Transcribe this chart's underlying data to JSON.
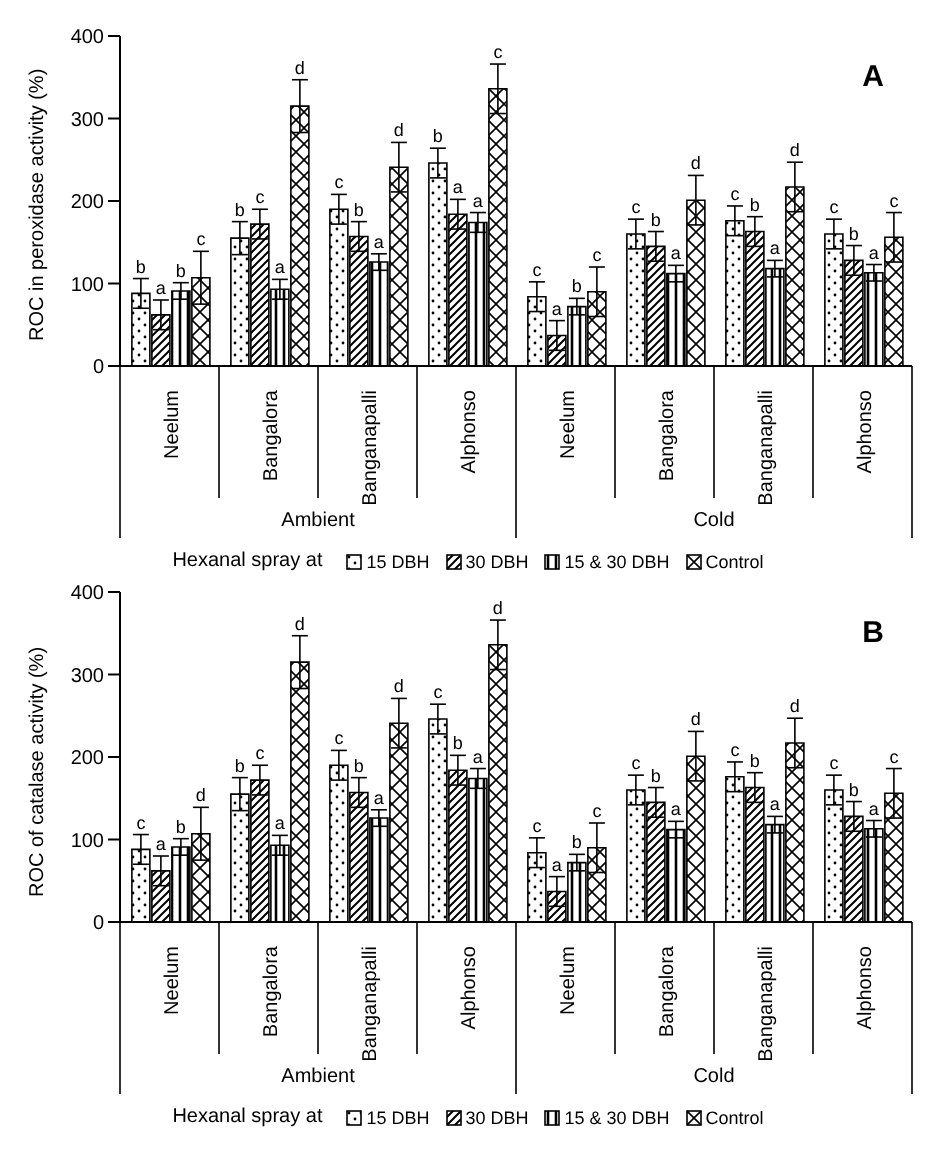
{
  "chart_data": [
    {
      "type": "bar",
      "title": "A",
      "ylabel": "ROC in peroxidase activity (%)",
      "legend_title": "Hexanal spray at",
      "legend": "bottom",
      "ylim": [
        0,
        400
      ],
      "yticks": [
        0,
        100,
        200,
        300,
        400
      ],
      "grid": false,
      "categories": [
        "Neelum",
        "Bangalora",
        "Banganapalli",
        "Alphonso",
        "Neelum",
        "Bangalora",
        "Banganapalli",
        "Alphonso"
      ],
      "annotations": [
        "Ambient",
        "Cold"
      ],
      "series": [
        {
          "name": "15 DBH",
          "color": "#000000",
          "values": [
            88,
            155,
            190,
            246,
            84,
            160,
            176,
            160
          ],
          "errors": [
            18,
            20,
            18,
            18,
            18,
            18,
            18,
            18
          ],
          "value_labels": [
            "b",
            "b",
            "c",
            "b",
            "c",
            "c",
            "c",
            "c"
          ]
        },
        {
          "name": "30 DBH",
          "color": "#000000",
          "values": [
            62,
            172,
            157,
            184,
            37,
            145,
            163,
            128
          ],
          "errors": [
            18,
            18,
            18,
            18,
            18,
            18,
            18,
            18
          ],
          "value_labels": [
            "a",
            "c",
            "b",
            "a",
            "a",
            "b",
            "b",
            "b"
          ]
        },
        {
          "name": "15 & 30 DBH",
          "color": "#000000",
          "values": [
            91,
            93,
            126,
            174,
            72,
            112,
            118,
            113
          ],
          "errors": [
            10,
            12,
            10,
            12,
            10,
            10,
            10,
            10
          ],
          "value_labels": [
            "b",
            "a",
            "a",
            "a",
            "b",
            "a",
            "a",
            "a"
          ]
        },
        {
          "name": "Control",
          "color": "#000000",
          "values": [
            107,
            315,
            241,
            336,
            90,
            201,
            217,
            156
          ],
          "errors": [
            32,
            32,
            30,
            30,
            30,
            30,
            30,
            30
          ],
          "value_labels": [
            "c",
            "d",
            "d",
            "c",
            "c",
            "d",
            "d",
            "c"
          ]
        }
      ]
    },
    {
      "type": "bar",
      "title": "B",
      "ylabel": "ROC of catalase activity (%)",
      "legend_title": "Hexanal spray at",
      "legend": "bottom",
      "ylim": [
        0,
        400
      ],
      "yticks": [
        0,
        100,
        200,
        300,
        400
      ],
      "grid": false,
      "categories": [
        "Neelum",
        "Bangalora",
        "Banganapalli",
        "Alphonso",
        "Neelum",
        "Bangalora",
        "Banganapalli",
        "Alphonso"
      ],
      "annotations": [
        "Ambient",
        "Cold"
      ],
      "series": [
        {
          "name": "15 DBH",
          "color": "#000000",
          "values": [
            88,
            155,
            190,
            246,
            84,
            160,
            176,
            160
          ],
          "errors": [
            18,
            20,
            18,
            18,
            18,
            18,
            18,
            18
          ],
          "value_labels": [
            "c",
            "b",
            "c",
            "c",
            "c",
            "c",
            "c",
            "c"
          ]
        },
        {
          "name": "30 DBH",
          "color": "#000000",
          "values": [
            62,
            172,
            157,
            184,
            37,
            145,
            163,
            128
          ],
          "errors": [
            18,
            18,
            18,
            18,
            18,
            18,
            18,
            18
          ],
          "value_labels": [
            "a",
            "c",
            "b",
            "b",
            "a",
            "b",
            "b",
            "b"
          ]
        },
        {
          "name": "15 & 30 DBH",
          "color": "#000000",
          "values": [
            91,
            93,
            126,
            174,
            72,
            112,
            118,
            113
          ],
          "errors": [
            10,
            12,
            10,
            12,
            10,
            10,
            10,
            10
          ],
          "value_labels": [
            "b",
            "a",
            "a",
            "a",
            "b",
            "a",
            "a",
            "a"
          ]
        },
        {
          "name": "Control",
          "color": "#000000",
          "values": [
            107,
            315,
            241,
            336,
            90,
            201,
            217,
            156
          ],
          "errors": [
            32,
            32,
            30,
            30,
            30,
            30,
            30,
            30
          ],
          "value_labels": [
            "d",
            "d",
            "d",
            "d",
            "c",
            "d",
            "d",
            "c"
          ]
        }
      ]
    }
  ]
}
